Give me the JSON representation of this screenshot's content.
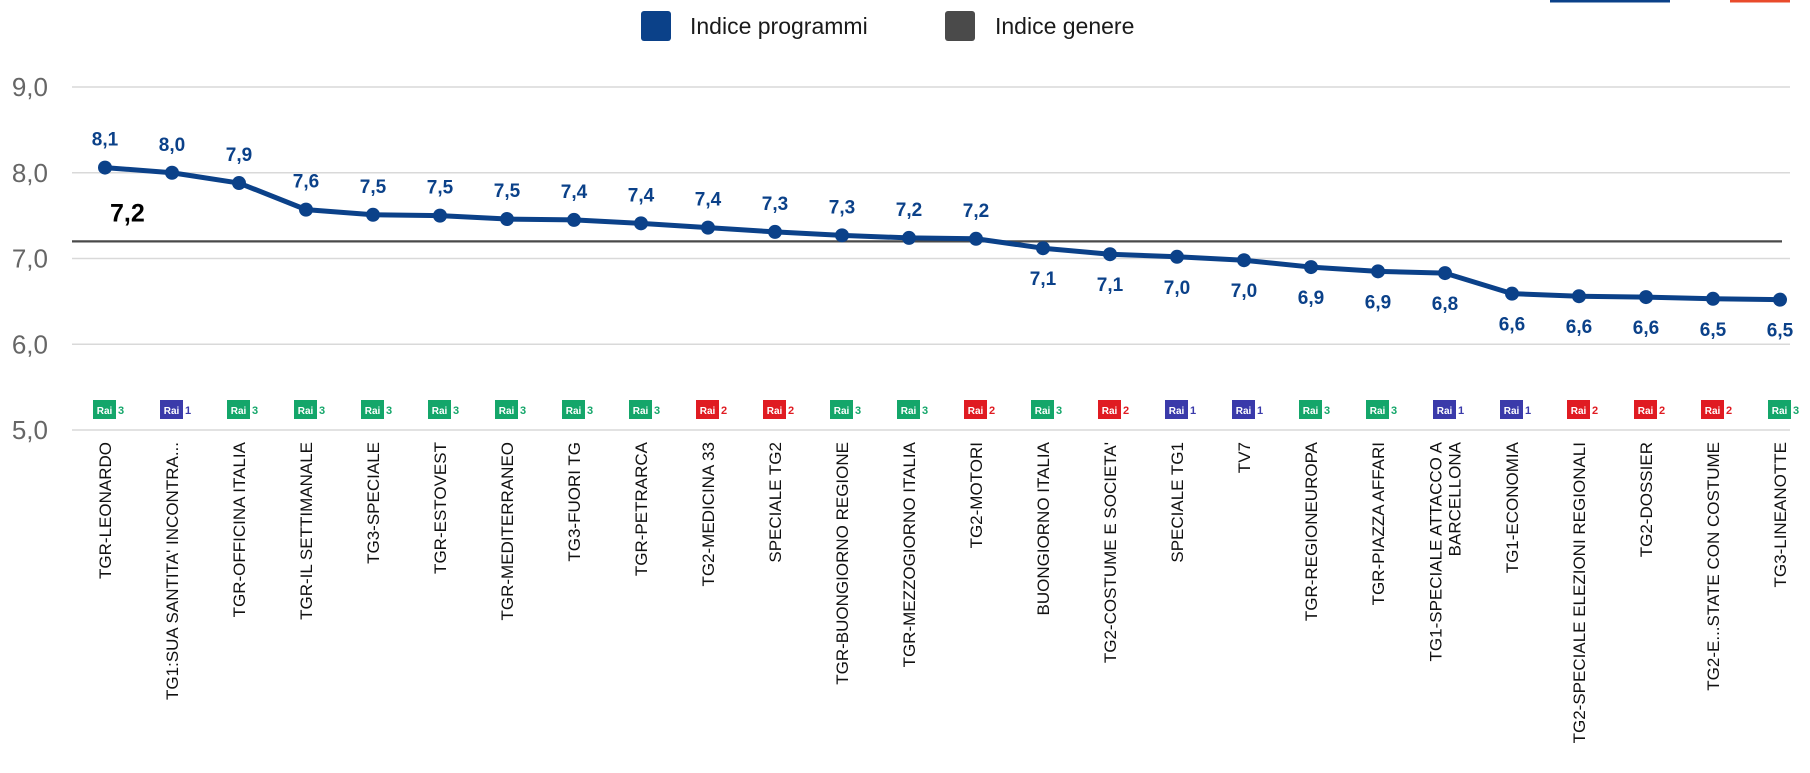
{
  "chart_data": {
    "type": "line",
    "title": "",
    "xlabel": "",
    "ylabel": "",
    "ylim": [
      5.0,
      9.0
    ],
    "yticks": [
      "5,0",
      "6,0",
      "7,0",
      "8,0",
      "9,0"
    ],
    "grid": true,
    "legend_position": "top-center",
    "legend": [
      {
        "label": "Indice programmi",
        "color": "#0b4189"
      },
      {
        "label": "Indice genere",
        "color": "#4a4a4a"
      }
    ],
    "categories": [
      "TGR-LEONARDO",
      "TG1:SUA SANTITA' INCONTRA...",
      "TGR-OFFICINA ITALIA",
      "TGR-IL SETTIMANALE",
      "TG3-SPECIALE",
      "TGR-ESTOVEST",
      "TGR-MEDITERRANEO",
      "TG3-FUORI TG",
      "TGR-PETRARCA",
      "TG2-MEDICINA 33",
      "SPECIALE TG2",
      "TGR-BUONGIORNO REGIONE",
      "TGR-MEZZOGIORNO ITALIA",
      "TG2-MOTORI",
      "BUONGIORNO ITALIA",
      "TG2-COSTUME E SOCIETA'",
      "SPECIALE TG1",
      "TV7",
      "TGR-REGIONEUROPA",
      "TGR-PIAZZA AFFARI",
      "TG1-SPECIALE ATTACCO A BARCELLONA",
      "TG1-ECONOMIA",
      "TG2-SPECIALE ELEZIONI REGIONALI",
      "TG2-DOSSIER",
      "TG2-E...STATE CON COSTUME",
      "TG3-LINEANOTTE"
    ],
    "channels": [
      "3",
      "1",
      "3",
      "3",
      "3",
      "3",
      "3",
      "3",
      "3",
      "2",
      "2",
      "3",
      "3",
      "2",
      "3",
      "2",
      "1",
      "1",
      "3",
      "3",
      "1",
      "1",
      "2",
      "2",
      "2",
      "3"
    ],
    "series": [
      {
        "name": "Indice programmi",
        "color": "#0b4189",
        "values": [
          8.06,
          8.0,
          7.88,
          7.57,
          7.51,
          7.5,
          7.46,
          7.45,
          7.41,
          7.36,
          7.31,
          7.27,
          7.24,
          7.23,
          7.12,
          7.05,
          7.02,
          6.98,
          6.9,
          6.85,
          6.83,
          6.59,
          6.56,
          6.55,
          6.53,
          6.52
        ],
        "labels": [
          "8,1",
          "8,0",
          "7,9",
          "7,6",
          "7,5",
          "7,5",
          "7,5",
          "7,4",
          "7,4",
          "7,4",
          "7,3",
          "7,3",
          "7,2",
          "7,2",
          "7,1",
          "7,1",
          "7,0",
          "7,0",
          "6,9",
          "6,9",
          "6,8",
          "6,6",
          "6,6",
          "6,6",
          "6,5",
          "6,5"
        ]
      }
    ],
    "reference_line": {
      "name": "Indice genere",
      "value": 7.2,
      "label": "7,2",
      "color": "#4a4a4a"
    },
    "channel_logos": {
      "text": "Rai",
      "colors": {
        "1": "#3a3aaa",
        "2": "#e01b22",
        "3": "#14a66a"
      }
    }
  }
}
